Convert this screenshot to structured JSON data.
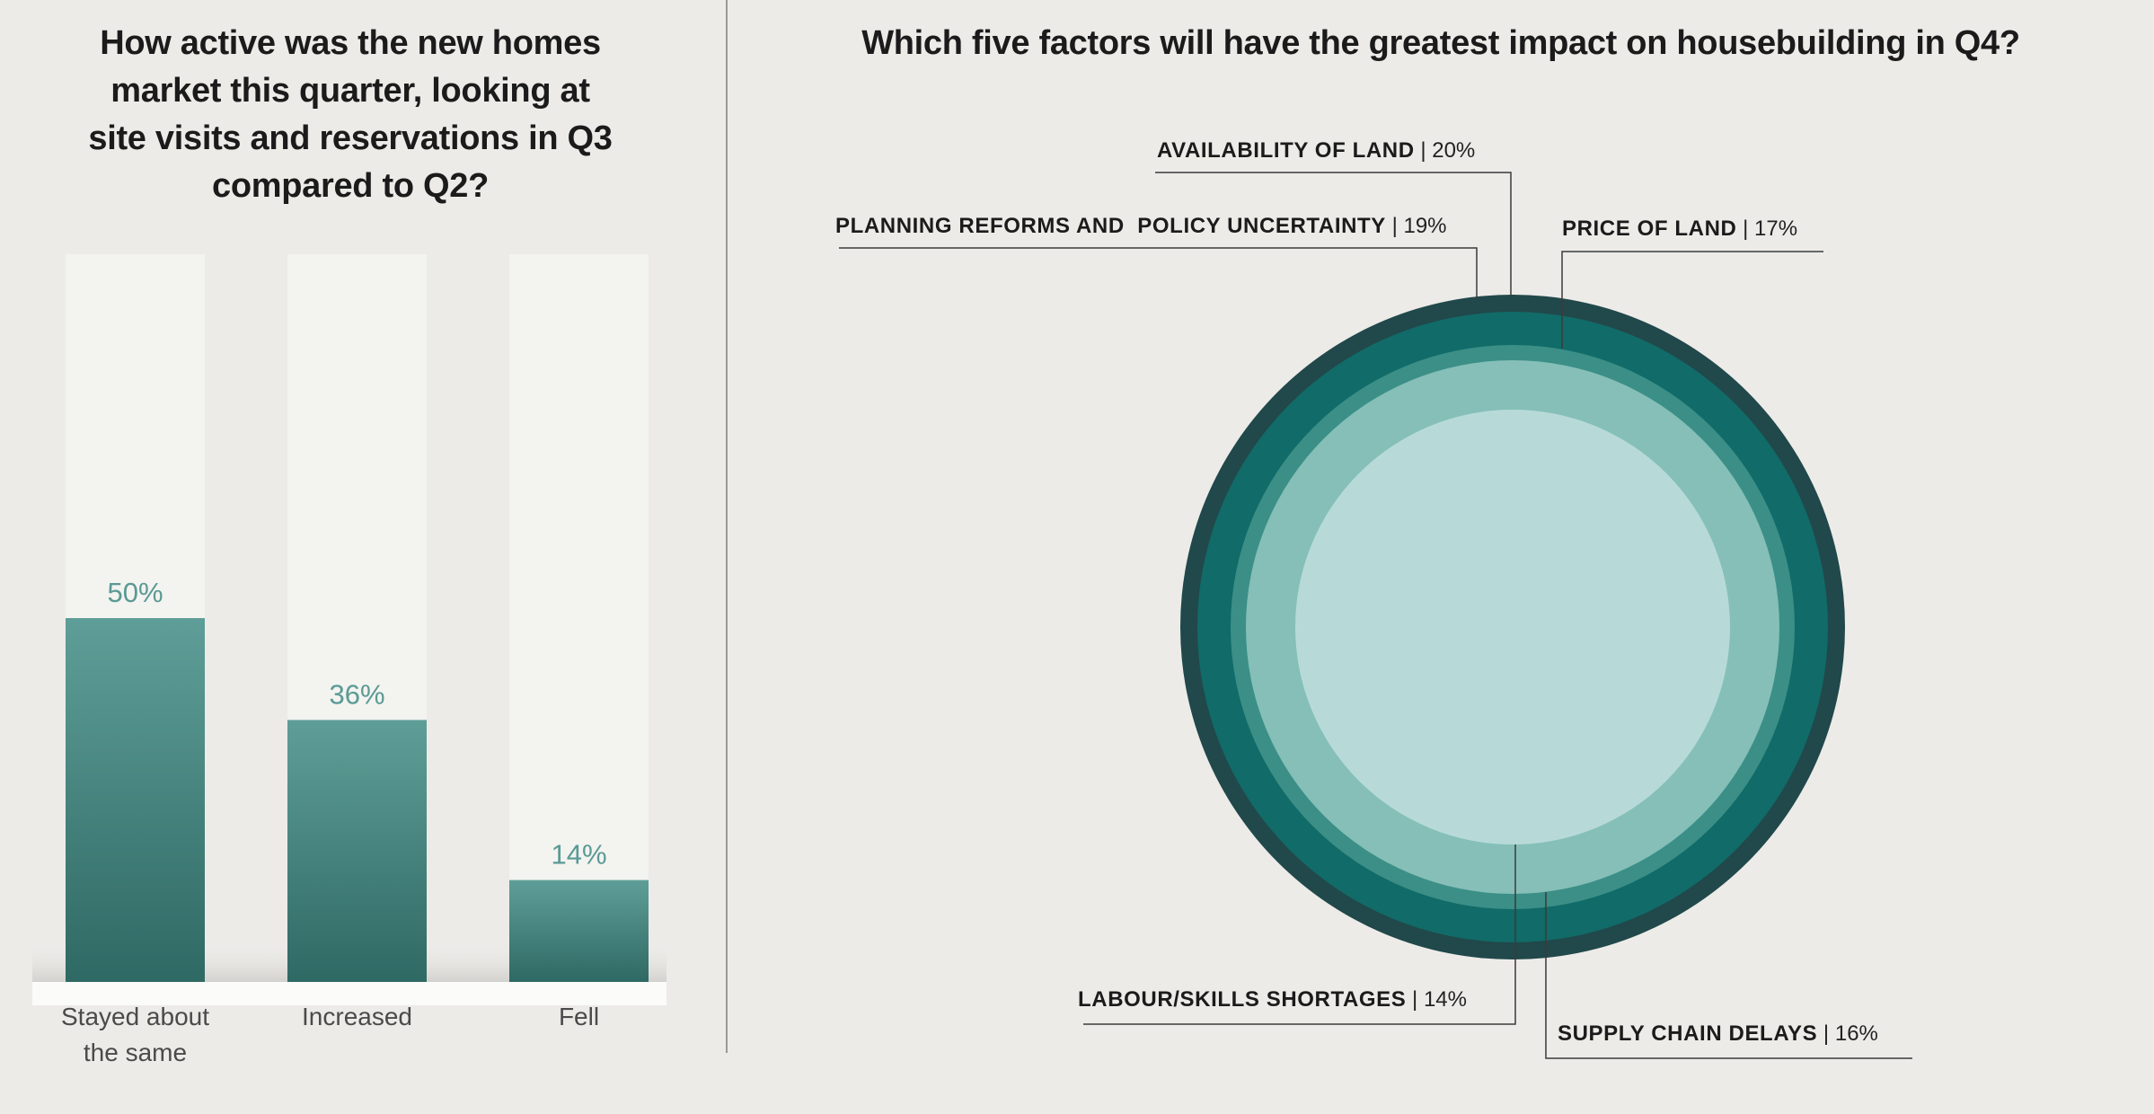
{
  "left_chart": {
    "title": "How active was the new homes market this quarter, looking at site visits and reservations in Q3 compared to Q2?",
    "title_lines": [
      "How active was the new homes",
      "market this quarter, looking at",
      "site visits and reservations in Q3",
      "compared to Q2?"
    ],
    "categories": [
      "Stayed about the same",
      "Increased",
      "Fell"
    ],
    "category_lines": [
      [
        "Stayed about",
        "the same"
      ],
      [
        "Increased"
      ],
      [
        "Fell"
      ]
    ],
    "value_labels": [
      "50%",
      "36%",
      "14%"
    ]
  },
  "right_chart": {
    "title": "Which five factors will have the greatest impact on housebuilding in Q4?",
    "factors": [
      {
        "label": "AVAILABILITY OF LAND",
        "value": "20%"
      },
      {
        "label": "PLANNING REFORMS AND  POLICY UNCERTAINTY",
        "value": "19%"
      },
      {
        "label": "PRICE OF LAND",
        "value": "17%"
      },
      {
        "label": "LABOUR/SKILLS SHORTAGES",
        "value": "14%"
      },
      {
        "label": "SUPPLY CHAIN DELAYS",
        "value": "16%"
      }
    ]
  },
  "colors": {
    "background": "#ecebe8",
    "bar_top": "#5f9e98",
    "bar_bottom": "#2f6964",
    "bar_track": "#f3f3f0",
    "value_label": "#5a9a94",
    "ring_1": "#21484a",
    "ring_2": "#116b68",
    "ring_3": "#3b8f87",
    "ring_4": "#85bfb8",
    "ring_5": "#b7dad9"
  },
  "chart_data": [
    {
      "type": "bar",
      "title": "How active was the new homes market this quarter, looking at site visits and reservations in Q3 compared to Q2?",
      "categories": [
        "Stayed about the same",
        "Increased",
        "Fell"
      ],
      "values": [
        50,
        36,
        14
      ],
      "xlabel": "",
      "ylabel": "",
      "ylim": [
        0,
        100
      ]
    },
    {
      "type": "pie",
      "title": "Which five factors will have the greatest impact on housebuilding in Q4?",
      "categories": [
        "Availability of land",
        "Planning reforms and policy uncertainty",
        "Price of land",
        "Supply chain delays",
        "Labour/skills shortages"
      ],
      "values": [
        20,
        19,
        17,
        16,
        14
      ]
    }
  ]
}
